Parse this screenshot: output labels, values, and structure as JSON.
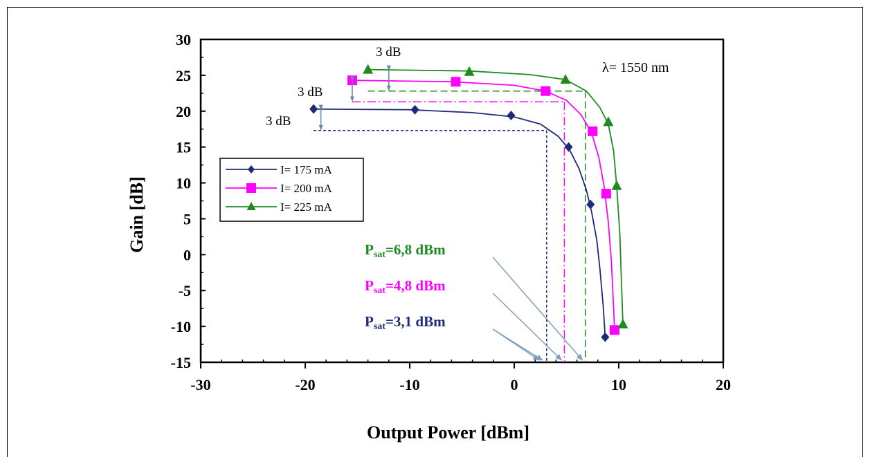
{
  "chart_data": {
    "type": "line",
    "xlabel": "Output Power [dBm]",
    "ylabel": "Gain [dB]",
    "xlim": [
      -30,
      20
    ],
    "ylim": [
      -15,
      30
    ],
    "x_ticks": [
      -30,
      -20,
      -10,
      0,
      10,
      20
    ],
    "y_ticks": [
      -15,
      -10,
      -5,
      0,
      5,
      10,
      15,
      20,
      25,
      30
    ],
    "grid": false,
    "legend_position": "middle-left",
    "wavelength_label": "λ= 1550 nm",
    "series": [
      {
        "name": "I= 175 mA",
        "color": "#1f2a7a",
        "marker": "diamond",
        "points": [
          [
            -19.2,
            20.3
          ],
          [
            -9.5,
            20.2
          ],
          [
            -0.3,
            19.4
          ],
          [
            5.2,
            15.0
          ],
          [
            7.3,
            7.0
          ],
          [
            8.7,
            -11.5
          ]
        ],
        "curve": [
          [
            -19.2,
            20.3
          ],
          [
            -10,
            20.2
          ],
          [
            -4,
            19.8
          ],
          [
            0,
            19.2
          ],
          [
            2.5,
            18.2
          ],
          [
            4.2,
            16.5
          ],
          [
            5.3,
            14.6
          ],
          [
            6.2,
            12.0
          ],
          [
            6.9,
            9.0
          ],
          [
            7.4,
            6.0
          ],
          [
            7.9,
            2.0
          ],
          [
            8.2,
            -2.0
          ],
          [
            8.5,
            -7.0
          ],
          [
            8.7,
            -11.5
          ]
        ]
      },
      {
        "name": "I= 200 mA",
        "color": "#ff00ff",
        "marker": "square",
        "points": [
          [
            -15.5,
            24.3
          ],
          [
            -5.6,
            24.1
          ],
          [
            3.0,
            22.8
          ],
          [
            7.5,
            17.2
          ],
          [
            8.8,
            8.5
          ],
          [
            9.6,
            -10.5
          ]
        ],
        "curve": [
          [
            -15.5,
            24.3
          ],
          [
            -6,
            24.1
          ],
          [
            0,
            23.6
          ],
          [
            3.0,
            22.8
          ],
          [
            5.0,
            21.5
          ],
          [
            6.4,
            19.5
          ],
          [
            7.4,
            17.0
          ],
          [
            8.1,
            13.5
          ],
          [
            8.6,
            9.5
          ],
          [
            9.0,
            4.5
          ],
          [
            9.3,
            -1.0
          ],
          [
            9.6,
            -10.5
          ]
        ]
      },
      {
        "name": "I= 225 mA",
        "color": "#1f8a1f",
        "marker": "triangle",
        "points": [
          [
            -14.0,
            25.8
          ],
          [
            -4.3,
            25.5
          ],
          [
            4.9,
            24.4
          ],
          [
            9.0,
            18.5
          ],
          [
            9.8,
            9.6
          ],
          [
            10.4,
            -9.7
          ]
        ],
        "curve": [
          [
            -14.0,
            25.8
          ],
          [
            -4.3,
            25.6
          ],
          [
            1.5,
            25.1
          ],
          [
            4.9,
            24.4
          ],
          [
            6.9,
            22.8
          ],
          [
            8.2,
            20.5
          ],
          [
            9.0,
            18.2
          ],
          [
            9.5,
            14.5
          ],
          [
            9.8,
            9.6
          ],
          [
            10.1,
            3.0
          ],
          [
            10.4,
            -9.7
          ]
        ]
      }
    ],
    "three_db_label": "3 dB",
    "psat_labels": [
      {
        "sub": "sat",
        "value": "=6,8 dBm",
        "color": "#1f8a1f"
      },
      {
        "sub": "sat",
        "value": "=4,8 dBm",
        "color": "#ff00ff"
      },
      {
        "sub": "sat",
        "value": "=3,1 dBm",
        "color": "#1f2a7a"
      }
    ],
    "psat_prefix": "P",
    "psat_points": [
      6.8,
      4.8,
      3.1
    ]
  }
}
